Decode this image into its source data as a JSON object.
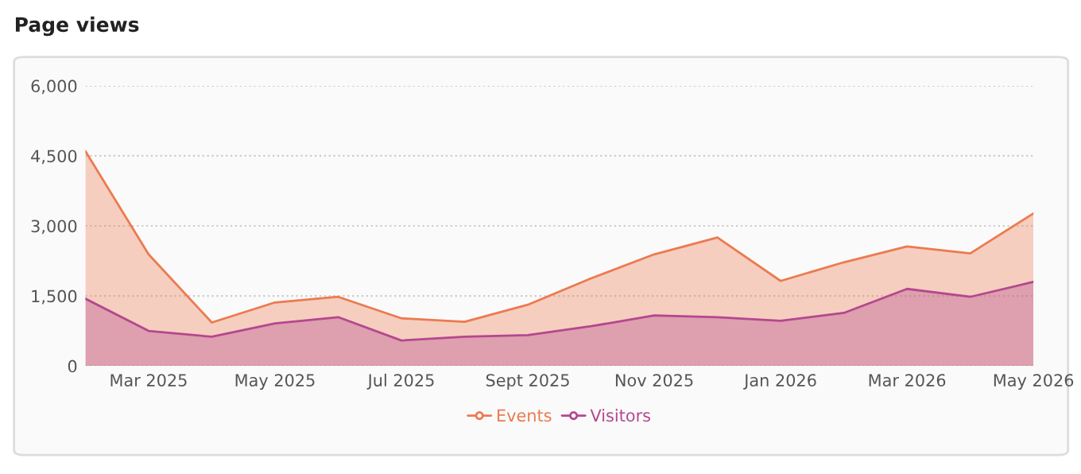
{
  "chart_data": {
    "type": "area",
    "title": "Page views",
    "categories": [
      null,
      "Mar 2025",
      null,
      "May 2025",
      null,
      "Jul 2025",
      null,
      "Sept 2025",
      null,
      "Nov 2025",
      null,
      "Jan 2026",
      null,
      "Mar 2026",
      null,
      "May 2026"
    ],
    "series": [
      {
        "name": "Events",
        "color": "#ec7a50",
        "values": [
          4600,
          2390,
          930,
          1360,
          1480,
          1020,
          945,
          1310,
          1875,
          2390,
          2750,
          1820,
          2220,
          2560,
          2410,
          3265
        ]
      },
      {
        "name": "Visitors",
        "color": "#b5478f",
        "values": [
          1440,
          750,
          625,
          910,
          1045,
          545,
          625,
          660,
          850,
          1080,
          1045,
          965,
          1135,
          1650,
          1480,
          1800
        ]
      }
    ],
    "ylim": [
      0,
      6000
    ],
    "yticks": [
      {
        "value": 0,
        "label": "0"
      },
      {
        "value": 1500,
        "label": "1,500"
      },
      {
        "value": 3000,
        "label": "3,000"
      },
      {
        "value": 4500,
        "label": "4,500"
      },
      {
        "value": 6000,
        "label": "6,000"
      }
    ],
    "grid": "y",
    "legend": "bottom",
    "marker": "none",
    "line_style": "solid"
  }
}
